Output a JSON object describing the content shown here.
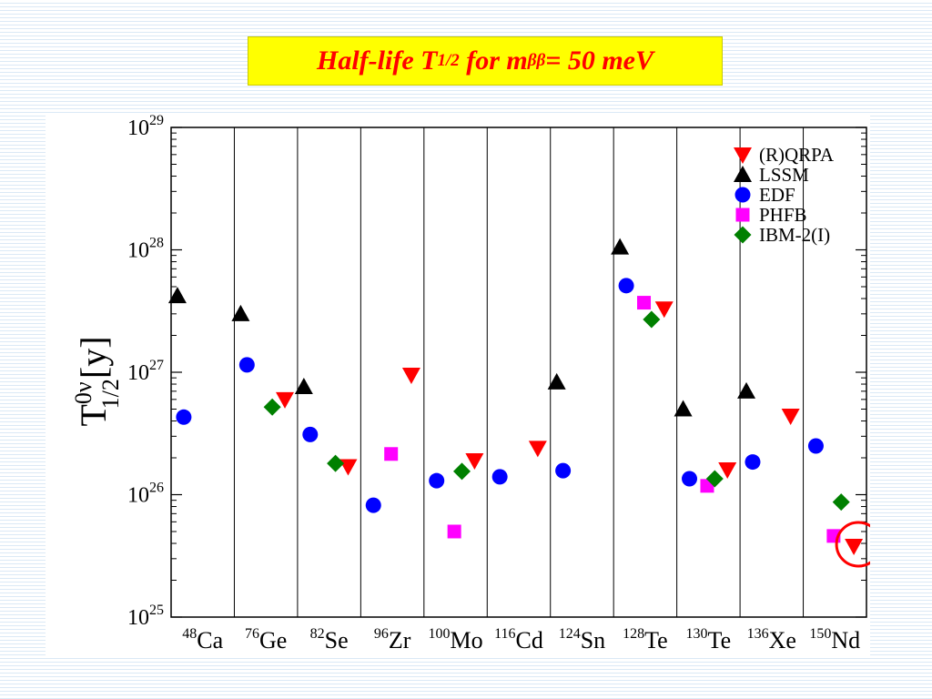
{
  "title": {
    "main": "Half-life T",
    "sub": "1/2",
    "mid": " for m",
    "sub2": "ββ",
    "end": "= 50 meV"
  },
  "colors": {
    "title_background": "#ffff00",
    "title_text": "#ff0000",
    "RQRPA": "#ff0000",
    "LSSM": "#000000",
    "EDF": "#0000ff",
    "PHFB": "#ff00ff",
    "IBM2": "#008000",
    "highlight_circle": "#ff0000"
  },
  "chart_data": {
    "type": "scatter",
    "y_scale": "log",
    "ylim": [
      1e+25,
      1e+29
    ],
    "ylabel": {
      "base": "T",
      "superscript": "0ν",
      "subscript": "1/2",
      "unit": "[y]"
    },
    "y_tick_labels": [
      {
        "value": 1e+25,
        "base": "10",
        "exp": "25"
      },
      {
        "value": 1e+26,
        "base": "10",
        "exp": "26"
      },
      {
        "value": 1e+27,
        "base": "10",
        "exp": "27"
      },
      {
        "value": 1e+28,
        "base": "10",
        "exp": "28"
      },
      {
        "value": 1e+29,
        "base": "10",
        "exp": "29"
      }
    ],
    "categories": [
      {
        "mass": "48",
        "symbol": "Ca"
      },
      {
        "mass": "76",
        "symbol": "Ge"
      },
      {
        "mass": "82",
        "symbol": "Se"
      },
      {
        "mass": "96",
        "symbol": "Zr"
      },
      {
        "mass": "100",
        "symbol": "Mo"
      },
      {
        "mass": "116",
        "symbol": "Cd"
      },
      {
        "mass": "124",
        "symbol": "Sn"
      },
      {
        "mass": "128",
        "symbol": "Te"
      },
      {
        "mass": "130",
        "symbol": "Te"
      },
      {
        "mass": "136",
        "symbol": "Xe"
      },
      {
        "mass": "150",
        "symbol": "Nd"
      }
    ],
    "legend_position": "top-right",
    "series": [
      {
        "name": "(R)QRPA",
        "marker": "triangle-down",
        "color": "#ff0000",
        "points": [
          [
            1,
            6e+26
          ],
          [
            2,
            1.7e+26
          ],
          [
            3,
            9.5e+26
          ],
          [
            4,
            1.9e+26
          ],
          [
            5,
            2.4e+26
          ],
          [
            7,
            3.3e+27
          ],
          [
            8,
            1.6e+26
          ],
          [
            9,
            4.4e+26
          ],
          [
            10,
            3.8e+25
          ]
        ]
      },
      {
        "name": "LSSM",
        "marker": "triangle-up",
        "color": "#000000",
        "points": [
          [
            0,
            4.2e+27
          ],
          [
            1,
            3e+27
          ],
          [
            2,
            7.6e+26
          ],
          [
            6,
            8.3e+26
          ],
          [
            7,
            1.05e+28
          ],
          [
            8,
            5e+26
          ],
          [
            9,
            7e+26
          ]
        ]
      },
      {
        "name": "EDF",
        "marker": "circle",
        "color": "#0000ff",
        "points": [
          [
            0,
            4.3e+26
          ],
          [
            1,
            1.15e+27
          ],
          [
            2,
            3.1e+26
          ],
          [
            3,
            8.2e+25
          ],
          [
            4,
            1.3e+26
          ],
          [
            5,
            1.4e+26
          ],
          [
            6,
            1.57e+26
          ],
          [
            7,
            5.1e+27
          ],
          [
            8,
            1.35e+26
          ],
          [
            9,
            1.85e+26
          ],
          [
            10,
            2.5e+26
          ]
        ]
      },
      {
        "name": "PHFB",
        "marker": "square",
        "color": "#ff00ff",
        "points": [
          [
            3,
            2.15e+26
          ],
          [
            4,
            5e+25
          ],
          [
            7,
            3.7e+27
          ],
          [
            8,
            1.18e+26
          ],
          [
            10,
            4.6e+25
          ]
        ]
      },
      {
        "name": "IBM-2(I)",
        "marker": "diamond",
        "color": "#008000",
        "points": [
          [
            1,
            5.2e+26
          ],
          [
            2,
            1.8e+26
          ],
          [
            4,
            1.55e+26
          ],
          [
            7,
            2.7e+27
          ],
          [
            8,
            1.35e+26
          ],
          [
            10,
            8.7e+25
          ]
        ]
      }
    ],
    "annotation": {
      "type": "circle",
      "category": 10,
      "series": "(R)QRPA"
    }
  }
}
